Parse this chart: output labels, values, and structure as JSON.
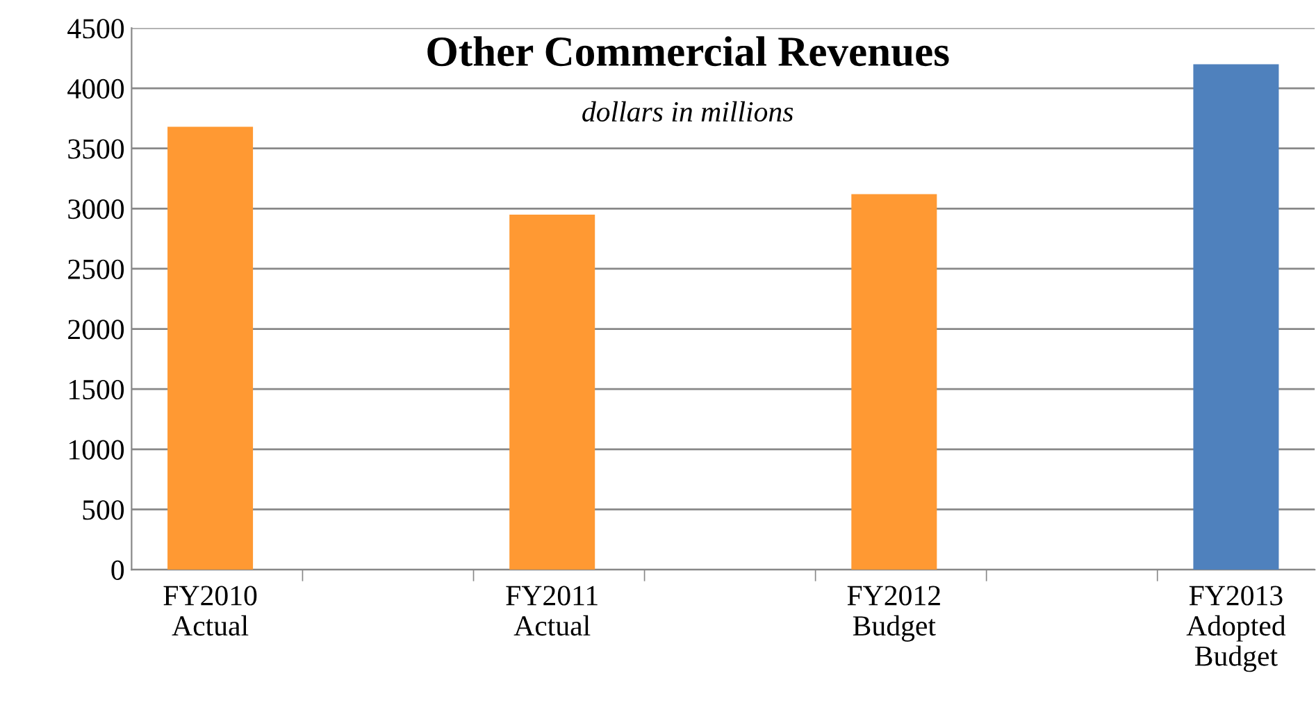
{
  "chart_data": {
    "type": "bar",
    "title": "Other Commercial Revenues",
    "subtitle": "dollars in millions",
    "categories": [
      "FY2010\nActual",
      "FY2011\nActual",
      "FY2012\nBudget",
      "FY2013\nAdopted\nBudget"
    ],
    "values": [
      3680,
      2950,
      3120,
      4200
    ],
    "colors": [
      "#ff9933",
      "#ff9933",
      "#ff9933",
      "#4f81bd"
    ],
    "ylim": [
      0,
      4500
    ],
    "yticks": [
      0,
      500,
      1000,
      1500,
      2000,
      2500,
      3000,
      3500,
      4000,
      4500
    ],
    "grid": "y"
  }
}
